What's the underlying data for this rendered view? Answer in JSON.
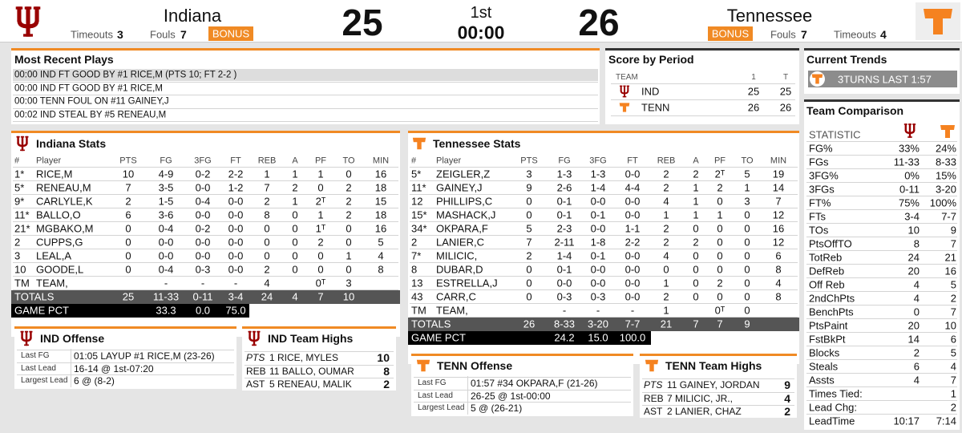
{
  "header": {
    "home": {
      "name": "Indiana",
      "timeouts_label": "Timeouts",
      "timeouts": 3,
      "fouls_label": "Fouls",
      "fouls": 7,
      "bonus": "BONUS",
      "score": 25
    },
    "away": {
      "name": "Tennessee",
      "timeouts_label": "Timeouts",
      "timeouts": 4,
      "fouls_label": "Fouls",
      "fouls": 7,
      "bonus": "BONUS",
      "score": 26
    },
    "period": "1st",
    "clock": "00:00"
  },
  "recent_plays": {
    "title": "Most Recent Plays",
    "plays": [
      "00:00 IND FT GOOD BY #1 RICE,M (PTS 10; FT 2-2 )",
      "00:00 IND FT GOOD BY #1 RICE,M",
      "00:00 TENN FOUL ON #11 GAINEY,J",
      "00:02 IND STEAL BY #5 RENEAU,M"
    ]
  },
  "score_by_period": {
    "title": "Score by Period",
    "header": [
      "TEAM",
      "1",
      "T"
    ],
    "rows": [
      [
        "IND",
        "25",
        "25"
      ],
      [
        "TENN",
        "26",
        "26"
      ]
    ]
  },
  "current_trends": {
    "title": "Current Trends",
    "items": [
      "3TURNS LAST 1:57"
    ]
  },
  "team_comparison": {
    "title": "Team Comparison",
    "header": "STATISTIC",
    "rows": [
      [
        "FG%",
        "33%",
        "24%"
      ],
      [
        "FGs",
        "11-33",
        "8-33"
      ],
      [
        "3FG%",
        "0%",
        "15%"
      ],
      [
        "3FGs",
        "0-11",
        "3-20"
      ],
      [
        "FT%",
        "75%",
        "100%"
      ],
      [
        "FTs",
        "3-4",
        "7-7"
      ],
      [
        "TOs",
        "10",
        "9"
      ],
      [
        "PtsOffTO",
        "8",
        "7"
      ],
      [
        "TotReb",
        "24",
        "21"
      ],
      [
        "DefReb",
        "20",
        "16"
      ],
      [
        "Off Reb",
        "4",
        "5"
      ],
      [
        "2ndChPts",
        "4",
        "2"
      ],
      [
        "BenchPts",
        "0",
        "7"
      ],
      [
        "PtsPaint",
        "20",
        "10"
      ],
      [
        "FstBkPt",
        "14",
        "6"
      ],
      [
        "Blocks",
        "2",
        "5"
      ],
      [
        "Steals",
        "6",
        "4"
      ],
      [
        "Assts",
        "4",
        "7"
      ],
      [
        "Times Tied:",
        null,
        "1"
      ],
      [
        "Lead Chg:",
        null,
        "2"
      ],
      [
        "LeadTime",
        "10:17",
        "7:14"
      ]
    ]
  },
  "indiana_stats": {
    "title": "Indiana Stats",
    "header": [
      "#",
      "Player",
      "PTS",
      "FG",
      "3FG",
      "FT",
      "REB",
      "A",
      "PF",
      "TO",
      "MIN"
    ],
    "rows": [
      [
        "1*",
        "RICE,M",
        "10",
        "4-9",
        "0-2",
        "2-2",
        "1",
        "1",
        "1",
        "0",
        "16"
      ],
      [
        "5*",
        "RENEAU,M",
        "7",
        "3-5",
        "0-0",
        "1-2",
        "7",
        "2",
        "0",
        "2",
        "18"
      ],
      [
        "9*",
        "CARLYLE,K",
        "2",
        "1-5",
        "0-4",
        "0-0",
        "2",
        "1",
        "2ᵀ",
        "2",
        "15"
      ],
      [
        "11*",
        "BALLO,O",
        "6",
        "3-6",
        "0-0",
        "0-0",
        "8",
        "0",
        "1",
        "2",
        "18"
      ],
      [
        "21*",
        "MGBAKO,M",
        "0",
        "0-4",
        "0-2",
        "0-0",
        "0",
        "0",
        "1ᵀ",
        "0",
        "16"
      ],
      [
        "2",
        "CUPPS,G",
        "0",
        "0-0",
        "0-0",
        "0-0",
        "0",
        "0",
        "2",
        "0",
        "5"
      ],
      [
        "3",
        "LEAL,A",
        "0",
        "0-0",
        "0-0",
        "0-0",
        "0",
        "0",
        "0",
        "1",
        "4"
      ],
      [
        "10",
        "GOODE,L",
        "0",
        "0-4",
        "0-3",
        "0-0",
        "2",
        "0",
        "0",
        "0",
        "8"
      ],
      [
        "TM",
        "TEAM,",
        null,
        "-",
        "-",
        "-",
        "4",
        null,
        "0ᵀ",
        "3",
        null
      ]
    ],
    "totals": {
      "label": "TOTALS",
      "values": [
        "25",
        "11-33",
        "0-11",
        "3-4",
        "24",
        "4",
        "7",
        "10"
      ]
    },
    "game_pct": {
      "label": "GAME PCT",
      "values": [
        "33.3",
        "0.0",
        "75.0"
      ]
    }
  },
  "tennessee_stats": {
    "title": "Tennessee Stats",
    "header": [
      "#",
      "Player",
      "PTS",
      "FG",
      "3FG",
      "FT",
      "REB",
      "A",
      "PF",
      "TO",
      "MIN"
    ],
    "rows": [
      [
        "5*",
        "ZEIGLER,Z",
        "3",
        "1-3",
        "1-3",
        "0-0",
        "2",
        "2",
        "2ᵀ",
        "5",
        "19"
      ],
      [
        "11*",
        "GAINEY,J",
        "9",
        "2-6",
        "1-4",
        "4-4",
        "2",
        "1",
        "2",
        "1",
        "14"
      ],
      [
        "12",
        "PHILLIPS,C",
        "0",
        "0-1",
        "0-0",
        "0-0",
        "4",
        "1",
        "0",
        "3",
        "7"
      ],
      [
        "15*",
        "MASHACK,J",
        "0",
        "0-1",
        "0-1",
        "0-0",
        "1",
        "1",
        "1",
        "0",
        "12"
      ],
      [
        "34*",
        "OKPARA,F",
        "5",
        "2-3",
        "0-0",
        "1-1",
        "2",
        "0",
        "0",
        "0",
        "16"
      ],
      [
        "2",
        "LANIER,C",
        "7",
        "2-11",
        "1-8",
        "2-2",
        "2",
        "2",
        "0",
        "0",
        "12"
      ],
      [
        "7*",
        "MILICIC,",
        "2",
        "1-4",
        "0-1",
        "0-0",
        "4",
        "0",
        "0",
        "0",
        "6"
      ],
      [
        "8",
        "DUBAR,D",
        "0",
        "0-1",
        "0-0",
        "0-0",
        "0",
        "0",
        "0",
        "0",
        "8"
      ],
      [
        "13",
        "ESTRELLA,J",
        "0",
        "0-0",
        "0-0",
        "0-0",
        "1",
        "0",
        "2",
        "0",
        "4"
      ],
      [
        "43",
        "CARR,C",
        "0",
        "0-3",
        "0-3",
        "0-0",
        "2",
        "0",
        "0",
        "0",
        "8"
      ],
      [
        "TM",
        "TEAM,",
        null,
        "-",
        "-",
        "-",
        "1",
        null,
        "0ᵀ",
        "0",
        null
      ]
    ],
    "totals": {
      "label": "TOTALS",
      "values": [
        "26",
        "8-33",
        "3-20",
        "7-7",
        "21",
        "7",
        "7",
        "9"
      ]
    },
    "game_pct": {
      "label": "GAME PCT",
      "values": [
        "24.2",
        "15.0",
        "100.0"
      ]
    }
  },
  "ind_offense": {
    "title": "IND Offense",
    "rows": [
      [
        "Last FG",
        "01:05 LAYUP #1 RICE,M (23-26)"
      ],
      [
        "Last Lead",
        "16-14 @ 1st-07:20"
      ],
      [
        "Largest Lead",
        "6 @ (8-2)"
      ]
    ]
  },
  "ind_team_highs": {
    "title": "IND Team Highs",
    "rows": [
      [
        "PTS",
        "1 RICE, MYLES",
        "10"
      ],
      [
        "REB",
        "11 BALLO, OUMAR",
        "8"
      ],
      [
        "AST",
        "5 RENEAU, MALIK",
        "2"
      ]
    ]
  },
  "tenn_offense": {
    "title": "TENN Offense",
    "rows": [
      [
        "Last FG",
        "01:57 #34 OKPARA,F (21-26)"
      ],
      [
        "Last Lead",
        "26-25 @ 1st-00:00"
      ],
      [
        "Largest Lead",
        "5 @ (26-21)"
      ]
    ]
  },
  "tenn_team_highs": {
    "title": "TENN Team Highs",
    "rows": [
      [
        "PTS",
        "11 GAINEY, JORDAN",
        "9"
      ],
      [
        "REB",
        "7 MILICIC, JR.,",
        "4"
      ],
      [
        "AST",
        "2 LANIER, CHAZ",
        "2"
      ]
    ]
  }
}
